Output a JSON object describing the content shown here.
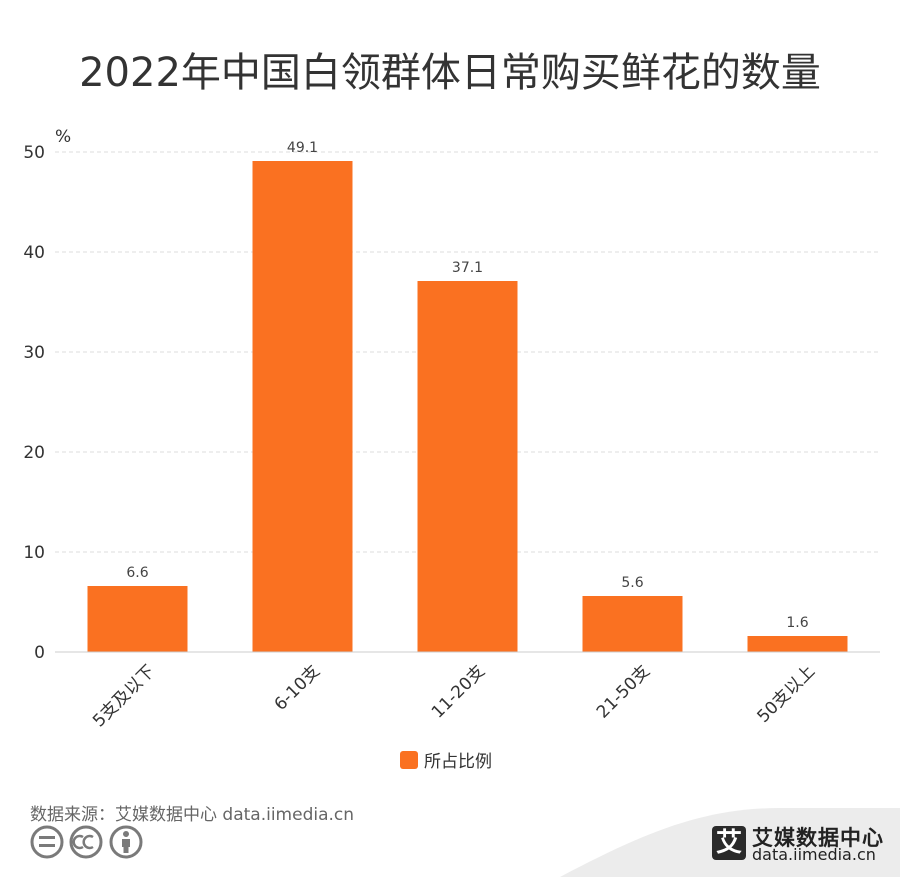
{
  "chart_data": {
    "type": "bar",
    "title": "2022年中国白领群体日常购买鲜花的数量",
    "unit": "%",
    "categories": [
      "5支及以下",
      "6-10支",
      "11-20支",
      "21-50支",
      "50支以上"
    ],
    "series": [
      {
        "name": "所占比例",
        "values": [
          6.6,
          49.1,
          37.1,
          5.6,
          1.6
        ],
        "color": "#fa7121"
      }
    ],
    "yticks": [
      0,
      10,
      20,
      30,
      40,
      50
    ],
    "ylim": [
      0,
      50
    ],
    "grid": true,
    "legend_position": "bottom-center"
  },
  "source": "数据来源：艾媒数据中心 data.iimedia.cn",
  "brand": {
    "logo_char": "艾",
    "name": "艾媒数据中心",
    "url": "data.iimedia.cn"
  },
  "icons": [
    "equals-circle-icon",
    "cc-icon",
    "person-circle-icon"
  ]
}
